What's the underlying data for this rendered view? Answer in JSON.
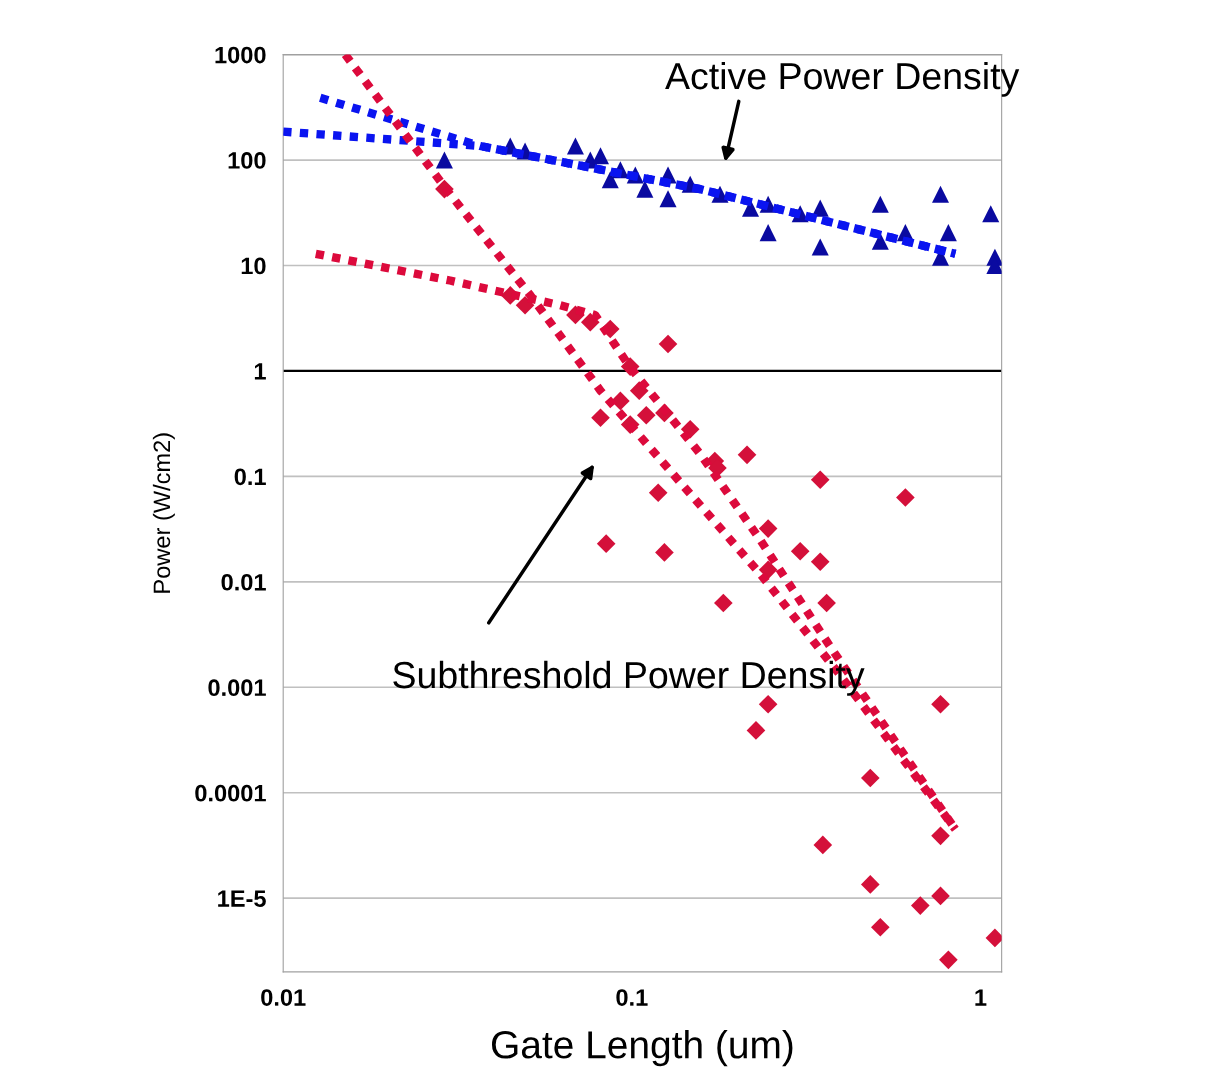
{
  "chart_data": {
    "type": "scatter",
    "xlabel": "Gate Length (um)",
    "ylabel": "Power (W/cm2)",
    "log": "xy",
    "grid": "y",
    "xlim": [
      0.01,
      1.15
    ],
    "ylim": [
      2e-06,
      1000
    ],
    "xticks": [
      0.01,
      0.1,
      1
    ],
    "yticks": [
      1000,
      100,
      10,
      1,
      0.1,
      0.01,
      0.001,
      0.0001,
      {
        "value": 1e-05,
        "label": "1E-5"
      }
    ],
    "ref_lines": [
      {
        "axis": "y",
        "value": 1,
        "color": "#000000"
      }
    ],
    "annotations": [
      "Active Power Density",
      "Subthreshold Power Density"
    ],
    "series": [
      {
        "marker": "triangle",
        "color": "#0a0aa0",
        "x": [
          0.029,
          0.0448,
          0.0494,
          0.0689,
          0.076,
          0.0813,
          0.0867,
          0.0927,
          0.1023,
          0.109,
          0.127,
          0.127,
          0.147,
          0.179,
          0.219,
          0.246,
          0.246,
          0.304,
          0.347,
          0.347,
          0.516,
          0.516,
          0.609,
          0.768,
          0.768,
          0.809,
          1.07,
          1.1,
          1.1
        ],
        "values": [
          100,
          136,
          122,
          136,
          100,
          110,
          65,
          81,
          72,
          53,
          72,
          43,
          59,
          47.5,
          35,
          38,
          20.5,
          31,
          35,
          15,
          38,
          17,
          20.5,
          47.5,
          12,
          20.5,
          31,
          12,
          10
        ]
      },
      {
        "marker": "diamond",
        "color": "#d4103a",
        "x": [
          0.029,
          0.0448,
          0.0494,
          0.0689,
          0.076,
          0.0867,
          0.127,
          0.0989,
          0.105,
          0.0927,
          0.0813,
          0.0989,
          0.11,
          0.124,
          0.147,
          0.173,
          0.176,
          0.214,
          0.119,
          0.347,
          0.609,
          0.0844,
          0.124,
          0.246,
          0.246,
          0.304,
          0.347,
          0.183,
          0.362,
          0.246,
          0.227,
          0.768,
          0.483,
          0.768,
          0.353,
          0.483,
          0.768,
          0.672,
          0.516,
          0.809,
          1.1
        ],
        "values": [
          53,
          5.2,
          4.2,
          3.4,
          2.9,
          2.5,
          1.8,
          1.1,
          0.65,
          0.52,
          0.36,
          0.31,
          0.38,
          0.4,
          0.28,
          0.14,
          0.12,
          0.16,
          0.07,
          0.093,
          0.063,
          0.023,
          0.019,
          0.032,
          0.013,
          0.0195,
          0.0155,
          0.0063,
          0.0063,
          0.00069,
          0.00039,
          0.00069,
          0.000138,
          3.9e-05,
          3.2e-05,
          1.35e-05,
          1.05e-05,
          8.5e-06,
          5.3e-06,
          2.6e-06,
          4.2e-06
        ]
      },
      {
        "type": "line",
        "line_style": "dotted",
        "color": "#0a14f0",
        "x": [
          0.01277,
          0.0367,
          0.157,
          0.847
        ],
        "values": [
          389,
          136,
          53,
          12.9
        ]
      },
      {
        "type": "line",
        "line_style": "dotted",
        "color": "#0a14f0",
        "x": [
          0.01,
          0.0367,
          0.157,
          0.847
        ],
        "values": [
          186,
          136,
          53,
          12.9
        ]
      },
      {
        "type": "line",
        "line_style": "dotted",
        "color": "#dc0a3c",
        "x": [
          0.01506,
          0.0301,
          0.0512,
          0.0813,
          0.138,
          0.234,
          0.396,
          0.847
        ],
        "values": [
          1000,
          47.5,
          5.2,
          0.65,
          0.087,
          0.0118,
          0.0013,
          4.5e-05
        ]
      },
      {
        "type": "line",
        "line_style": "dotted",
        "color": "#dc0a3c",
        "x": [
          0.0124,
          0.0301,
          0.0622,
          0.0784,
          0.0989,
          0.157,
          0.234,
          0.37,
          0.847
        ],
        "values": [
          12.9,
          7.2,
          4.2,
          3.4,
          1.08,
          0.164,
          0.0247,
          0.00245,
          4.5e-05
        ]
      }
    ]
  }
}
